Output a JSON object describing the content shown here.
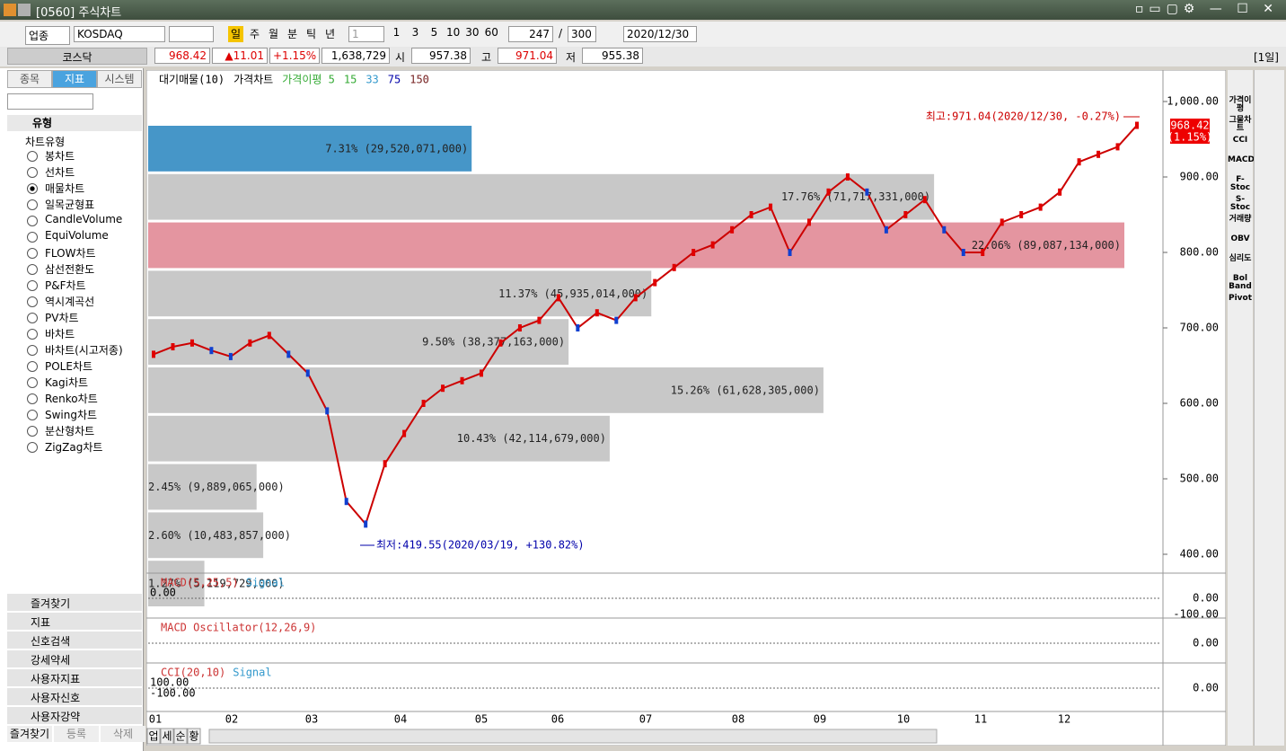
{
  "window": {
    "title": "[0560] 주식차트"
  },
  "toolbar": {
    "market": "업종",
    "code": "KOSDAQ",
    "periods": [
      "일",
      "주",
      "월",
      "분",
      "틱",
      "년"
    ],
    "intervals": [
      "1",
      "3",
      "5",
      "10",
      "30",
      "60"
    ],
    "count": "247",
    "total": "300",
    "date": "2020/12/30"
  },
  "quote": {
    "name": "코스닥",
    "price": "968.42",
    "change": "▲11.01",
    "pct": "+1.15%",
    "volume": "1,638,729",
    "open_label": "시",
    "open": "957.38",
    "high_label": "고",
    "high": "971.04",
    "low_label": "저",
    "low": "955.38",
    "period": "[1일]"
  },
  "sidebar": {
    "tabs": [
      "종목",
      "지표",
      "시스템"
    ],
    "section": "유형",
    "tree": "차트유형",
    "items": [
      "봉차트",
      "선차트",
      "매물차트",
      "일목균형표",
      "CandleVolume",
      "EquiVolume",
      "FLOW차트",
      "삼선전환도",
      "P&F차트",
      "역시계곡선",
      "PV차트",
      "바차트",
      "바차트(시고저종)",
      "POLE차트",
      "Kagi차트",
      "Renko차트",
      "Swing차트",
      "분산형차트",
      "ZigZag차트"
    ],
    "folders": [
      "즐겨찾기",
      "지표",
      "신호검색",
      "강세약세",
      "사용자지표",
      "사용자신호",
      "사용자강약"
    ],
    "bottom_tabs": [
      "즐겨찾기",
      "등록",
      "삭제"
    ]
  },
  "chart": {
    "legend": [
      "대기매물(10)",
      "가격차트",
      "가격이평 5",
      "15",
      "33",
      "75",
      "150"
    ],
    "profile": [
      {
        "label": "7.31% (29,520,071,000)",
        "share": 7.31
      },
      {
        "label": "17.76% (71,717,331,000)",
        "share": 17.76
      },
      {
        "label": "22.06% (89,087,134,000)",
        "share": 22.06
      },
      {
        "label": "11.37% (45,935,014,000)",
        "share": 11.37
      },
      {
        "label": "9.50% (38,377,163,000)",
        "share": 9.5
      },
      {
        "label": "15.26% (61,628,305,000)",
        "share": 15.26
      },
      {
        "label": "10.43% (42,114,679,000)",
        "share": 10.43
      },
      {
        "label": "2.45% (9,889,065,000)",
        "share": 2.45
      },
      {
        "label": "2.60% (10,483,857,000)",
        "share": 2.6
      },
      {
        "label": "1.27% (5,119,729,000)",
        "share": 1.27
      }
    ],
    "ylim": [
      400,
      1000
    ],
    "yticks": [
      {
        "value": 1000,
        "label": "1,000.00"
      },
      {
        "value": 900,
        "label": "900.00"
      },
      {
        "value": 800,
        "label": "800.00"
      },
      {
        "value": 700,
        "label": "700.00"
      },
      {
        "value": 600,
        "label": "600.00"
      },
      {
        "value": 500,
        "label": "500.00"
      },
      {
        "value": 400,
        "label": "400.00"
      }
    ],
    "closes": [
      665,
      675,
      680,
      670,
      662,
      680,
      690,
      665,
      640,
      590,
      470,
      440,
      520,
      560,
      600,
      620,
      630,
      640,
      680,
      700,
      710,
      740,
      700,
      720,
      710,
      740,
      760,
      780,
      800,
      810,
      830,
      850,
      860,
      800,
      840,
      880,
      900,
      880,
      830,
      850,
      870,
      830,
      800,
      800,
      840,
      850,
      860,
      880,
      920,
      930,
      940,
      968.42
    ],
    "high_note": "최고:971.04(2020/12/30, -0.27%)",
    "low_note": "최저:419.55(2020/03/19, +130.82%)",
    "tag_price": "968.42",
    "tag_pct": "(1.15%)",
    "months": [
      "01",
      "02",
      "03",
      "04",
      "05",
      "06",
      "07",
      "08",
      "09",
      "10",
      "11",
      "12"
    ]
  },
  "panels": [
    {
      "label": "MACD(5,25,5)",
      "signal": "Signal",
      "left": [
        "0.00"
      ],
      "axis": [
        "0.00",
        "-100.00"
      ]
    },
    {
      "label": "MACD Oscillator(12,26,9)",
      "axis": [
        "0.00"
      ]
    },
    {
      "label": "CCI(20,10)",
      "signal": "Signal",
      "left": [
        "100.00",
        "-100.00"
      ],
      "axis": [
        "0.00"
      ]
    }
  ],
  "bottom_tabs": [
    "업",
    "세",
    "순",
    "황"
  ],
  "tools": [
    "가격이평",
    "그물차트",
    "CCI",
    "MACD",
    "F-Stoc",
    "S-Stoc",
    "거래량",
    "OBV",
    "심리도",
    "Bol Band",
    "Pivot"
  ]
}
